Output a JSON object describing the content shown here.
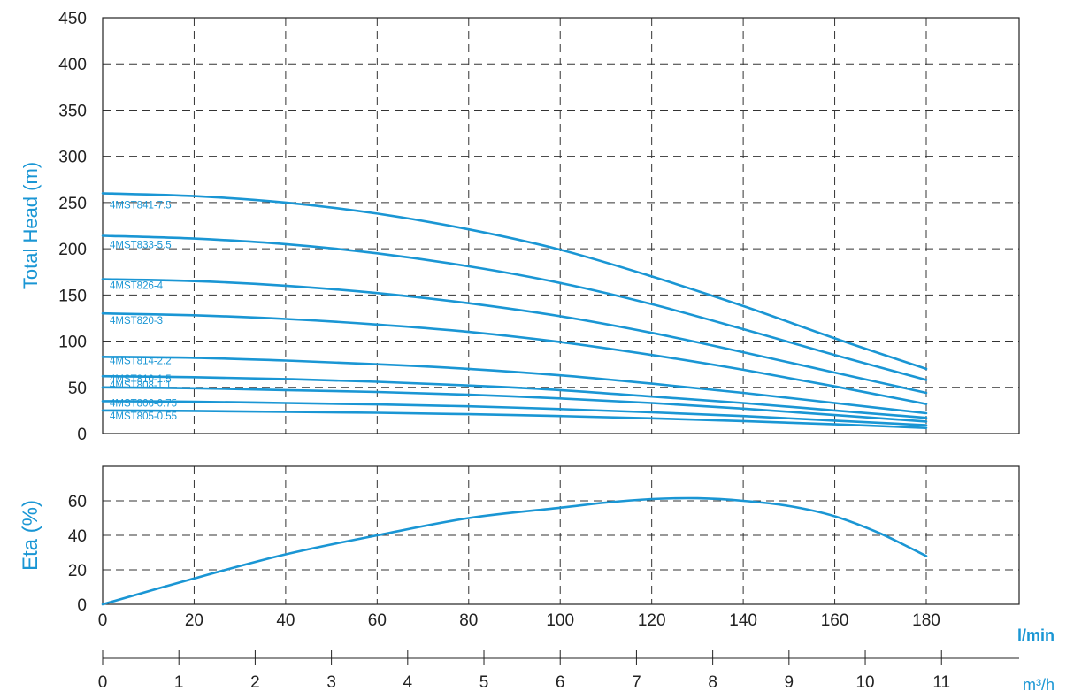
{
  "colors": {
    "curve": "#1a96d4",
    "axis_title": "#1a96d4",
    "grid": "#333333",
    "text": "#222222"
  },
  "chart_data": [
    {
      "type": "line",
      "id": "head",
      "ylabel": "Total Head (m)",
      "ylim": [
        0,
        450
      ],
      "xlim": [
        0,
        200
      ],
      "yticks": [
        0,
        50,
        100,
        150,
        200,
        250,
        300,
        350,
        400,
        450
      ],
      "xticks": [
        0,
        20,
        40,
        60,
        80,
        100,
        120,
        140,
        160,
        180
      ],
      "grid": true,
      "x": [
        0,
        20,
        40,
        60,
        80,
        100,
        120,
        140,
        160,
        180
      ],
      "series": [
        {
          "name": "4MST841-7.5",
          "values": [
            260,
            257,
            250,
            238,
            221,
            199,
            170,
            138,
            103,
            70
          ]
        },
        {
          "name": "4MST833-5.5",
          "values": [
            214,
            211,
            205,
            195,
            181,
            163,
            140,
            113,
            85,
            58
          ]
        },
        {
          "name": "4MST826-4",
          "values": [
            167,
            165,
            160,
            152,
            141,
            127,
            109,
            88,
            66,
            44
          ]
        },
        {
          "name": "4MST820-3",
          "values": [
            130,
            128,
            124,
            118,
            110,
            99,
            85,
            69,
            51,
            32
          ]
        },
        {
          "name": "4MST814-2.2",
          "values": [
            83,
            82,
            79,
            75,
            70,
            63,
            54,
            44,
            33,
            22
          ]
        },
        {
          "name": "4MST810-1.5",
          "values": [
            62,
            61,
            59,
            56,
            52,
            47,
            40,
            33,
            25,
            17
          ]
        },
        {
          "name": "4MST808-1.1",
          "values": [
            50,
            49,
            47,
            45,
            42,
            38,
            33,
            27,
            20,
            13
          ]
        },
        {
          "name": "4MST806-0.75",
          "values": [
            35,
            34.5,
            33,
            31.5,
            29.5,
            26.5,
            23,
            19,
            14,
            9
          ]
        },
        {
          "name": "4MST805-0.55",
          "values": [
            25,
            24.5,
            23.5,
            22.5,
            21,
            19,
            16.5,
            13.5,
            10,
            6
          ]
        }
      ]
    },
    {
      "type": "line",
      "id": "eta",
      "ylabel": "Eta (%)",
      "ylim": [
        0,
        80
      ],
      "xlim": [
        0,
        200
      ],
      "yticks": [
        0,
        20,
        40,
        60
      ],
      "xticks": [
        0,
        20,
        40,
        60,
        80,
        100,
        120,
        140,
        160,
        180
      ],
      "grid": true,
      "x": [
        0,
        20,
        40,
        60,
        80,
        100,
        110,
        120,
        130,
        140,
        150,
        160,
        170,
        180
      ],
      "series": [
        {
          "values": [
            0,
            15,
            29,
            40,
            50,
            56,
            59,
            61,
            61.5,
            60,
            57,
            51,
            41,
            28
          ]
        }
      ]
    }
  ],
  "x_axis": {
    "lmin": {
      "unit": "l/min",
      "ticks": [
        0,
        20,
        40,
        60,
        80,
        100,
        120,
        140,
        160,
        180
      ]
    },
    "m3h": {
      "unit": "m³/h",
      "ticks": [
        0,
        1,
        2,
        3,
        4,
        5,
        6,
        7,
        8,
        9,
        10,
        11
      ]
    }
  }
}
